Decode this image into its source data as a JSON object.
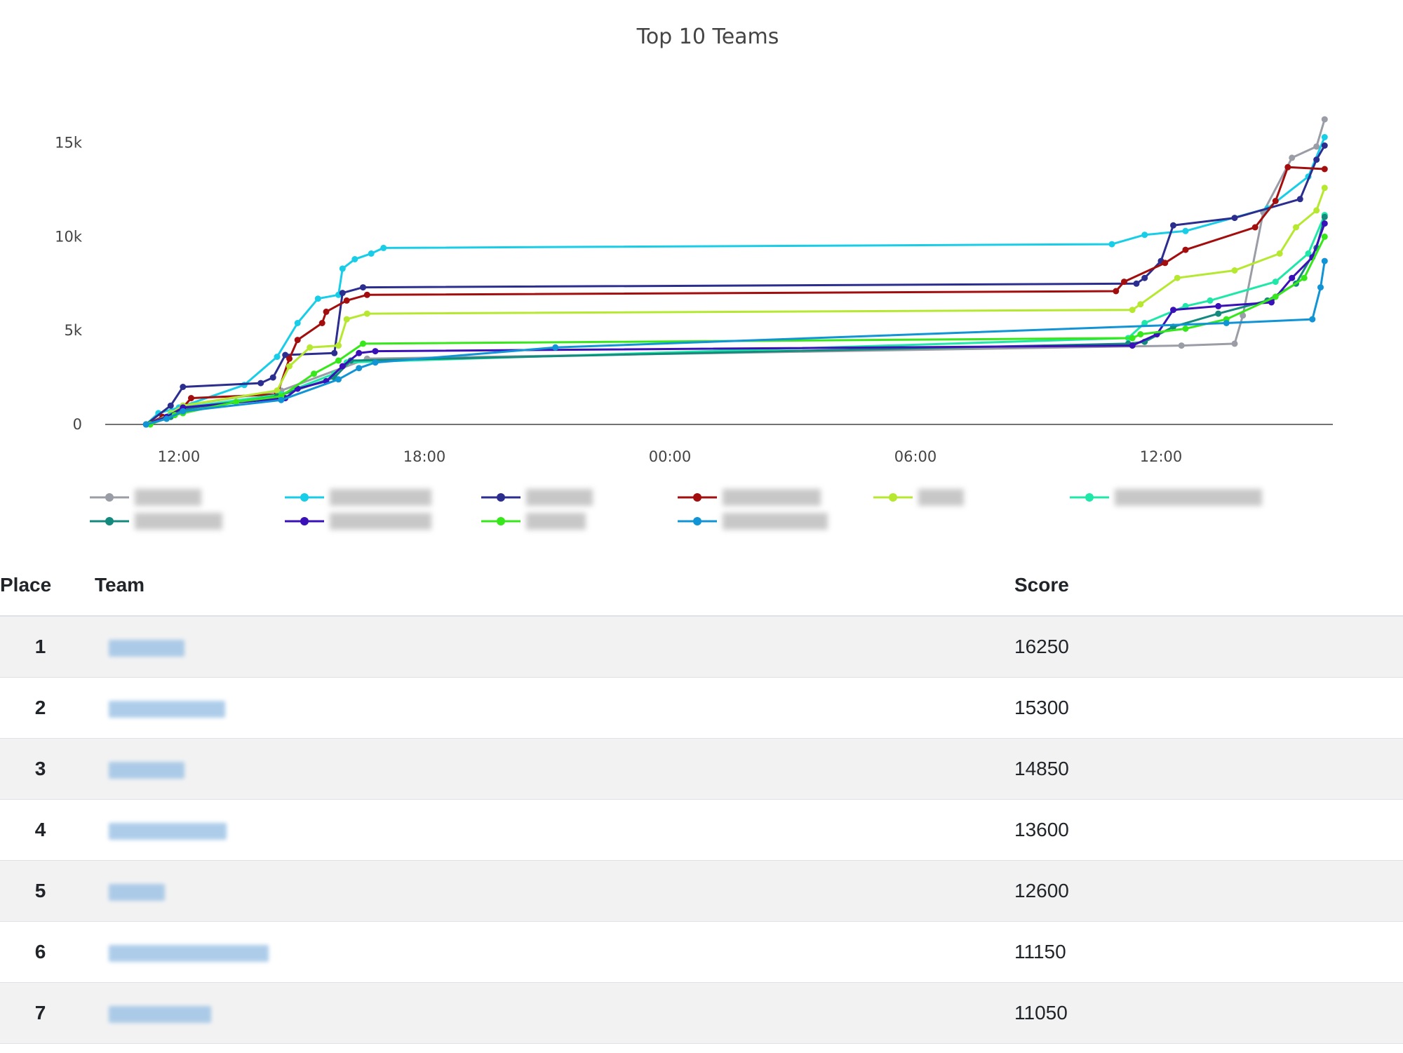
{
  "chart_data": {
    "type": "line",
    "title": "Top 10 Teams",
    "x_ticks": [
      "12:00",
      "18:00",
      "00:00",
      "06:00",
      "12:00"
    ],
    "x_tick_hours": [
      12,
      18,
      24,
      30,
      36
    ],
    "x_range_hours": [
      10.2,
      40.2
    ],
    "y_ticks": [
      "0",
      "5k",
      "10k",
      "15k"
    ],
    "y_tick_values": [
      0,
      5000,
      10000,
      15000
    ],
    "y_range": [
      0,
      17000
    ],
    "grid": false,
    "legend_position": "bottom",
    "series": [
      {
        "color": "#9a9ca6",
        "points": [
          [
            11.2,
            0
          ],
          [
            11.8,
            500
          ],
          [
            12.1,
            1000
          ],
          [
            14.5,
            1800
          ],
          [
            16.6,
            3500
          ],
          [
            36.5,
            4200
          ],
          [
            37.8,
            4300
          ],
          [
            38.0,
            5800
          ],
          [
            38.5,
            11300
          ],
          [
            39.2,
            14200
          ],
          [
            39.8,
            14800
          ],
          [
            40.0,
            16250
          ]
        ]
      },
      {
        "color": "#17cde8",
        "points": [
          [
            11.2,
            0
          ],
          [
            11.5,
            600
          ],
          [
            12.0,
            900
          ],
          [
            13.6,
            2100
          ],
          [
            14.4,
            3600
          ],
          [
            14.9,
            5400
          ],
          [
            15.4,
            6700
          ],
          [
            15.9,
            6900
          ],
          [
            16.0,
            8300
          ],
          [
            16.3,
            8800
          ],
          [
            16.7,
            9100
          ],
          [
            17.0,
            9400
          ],
          [
            34.8,
            9600
          ],
          [
            35.6,
            10100
          ],
          [
            36.6,
            10300
          ],
          [
            38.6,
            11500
          ],
          [
            39.6,
            13200
          ],
          [
            40.0,
            15300
          ]
        ]
      },
      {
        "color": "#2b2e8f",
        "points": [
          [
            11.2,
            0
          ],
          [
            11.8,
            1000
          ],
          [
            12.1,
            2000
          ],
          [
            14.0,
            2200
          ],
          [
            14.3,
            2500
          ],
          [
            14.6,
            3700
          ],
          [
            15.8,
            3800
          ],
          [
            16.0,
            7000
          ],
          [
            16.5,
            7300
          ],
          [
            35.4,
            7500
          ],
          [
            35.6,
            7800
          ],
          [
            36.0,
            8700
          ],
          [
            36.3,
            10600
          ],
          [
            37.8,
            11000
          ],
          [
            39.4,
            12000
          ],
          [
            39.8,
            14100
          ],
          [
            40.0,
            14850
          ]
        ]
      },
      {
        "color": "#a30d0d",
        "points": [
          [
            11.2,
            0
          ],
          [
            11.6,
            400
          ],
          [
            12.1,
            900
          ],
          [
            12.3,
            1400
          ],
          [
            14.4,
            1600
          ],
          [
            14.7,
            3500
          ],
          [
            14.9,
            4500
          ],
          [
            15.5,
            5400
          ],
          [
            15.6,
            6000
          ],
          [
            16.1,
            6600
          ],
          [
            16.6,
            6900
          ],
          [
            34.9,
            7100
          ],
          [
            35.1,
            7600
          ],
          [
            36.1,
            8600
          ],
          [
            36.6,
            9300
          ],
          [
            38.3,
            10500
          ],
          [
            38.8,
            11900
          ],
          [
            39.1,
            13700
          ],
          [
            40.0,
            13600
          ]
        ]
      },
      {
        "color": "#b5e82e",
        "points": [
          [
            11.3,
            0
          ],
          [
            11.8,
            600
          ],
          [
            12.1,
            1000
          ],
          [
            14.4,
            1800
          ],
          [
            14.7,
            3100
          ],
          [
            15.2,
            4100
          ],
          [
            15.9,
            4200
          ],
          [
            16.1,
            5600
          ],
          [
            16.6,
            5900
          ],
          [
            35.3,
            6100
          ],
          [
            35.5,
            6400
          ],
          [
            36.4,
            7800
          ],
          [
            37.8,
            8200
          ],
          [
            38.9,
            9100
          ],
          [
            39.3,
            10500
          ],
          [
            39.8,
            11400
          ],
          [
            40.0,
            12600
          ]
        ]
      },
      {
        "color": "#1de8a8",
        "points": [
          [
            11.2,
            0
          ],
          [
            11.8,
            500
          ],
          [
            12.1,
            900
          ],
          [
            14.5,
            1600
          ],
          [
            15.8,
            2700
          ],
          [
            16.1,
            3300
          ],
          [
            35.2,
            4600
          ],
          [
            35.6,
            5400
          ],
          [
            36.6,
            6300
          ],
          [
            37.2,
            6600
          ],
          [
            38.8,
            7600
          ],
          [
            39.6,
            9100
          ],
          [
            40.0,
            11150
          ]
        ]
      },
      {
        "color": "#138a7d",
        "points": [
          [
            11.2,
            0
          ],
          [
            11.8,
            400
          ],
          [
            12.1,
            800
          ],
          [
            14.4,
            1500
          ],
          [
            15.8,
            2500
          ],
          [
            16.2,
            3400
          ],
          [
            35.2,
            4300
          ],
          [
            35.6,
            4400
          ],
          [
            36.3,
            5200
          ],
          [
            37.4,
            5900
          ],
          [
            38.6,
            6600
          ],
          [
            39.3,
            7500
          ],
          [
            39.8,
            9400
          ],
          [
            40.0,
            11050
          ]
        ]
      },
      {
        "color": "#3a10b8",
        "points": [
          [
            11.2,
            0
          ],
          [
            11.7,
            400
          ],
          [
            12.1,
            900
          ],
          [
            14.6,
            1400
          ],
          [
            14.9,
            1900
          ],
          [
            15.6,
            2300
          ],
          [
            16.0,
            3100
          ],
          [
            16.4,
            3800
          ],
          [
            16.8,
            3900
          ],
          [
            35.3,
            4200
          ],
          [
            35.9,
            4800
          ],
          [
            36.3,
            6100
          ],
          [
            37.4,
            6300
          ],
          [
            38.7,
            6500
          ],
          [
            39.2,
            7800
          ],
          [
            39.7,
            8900
          ],
          [
            40.0,
            10700
          ]
        ]
      },
      {
        "color": "#36e81a",
        "points": [
          [
            11.3,
            0
          ],
          [
            11.9,
            500
          ],
          [
            12.1,
            600
          ],
          [
            13.4,
            1200
          ],
          [
            14.5,
            1500
          ],
          [
            15.3,
            2700
          ],
          [
            15.9,
            3400
          ],
          [
            16.5,
            4300
          ],
          [
            35.3,
            4600
          ],
          [
            35.5,
            4800
          ],
          [
            36.6,
            5100
          ],
          [
            37.6,
            5600
          ],
          [
            38.8,
            6800
          ],
          [
            39.5,
            7800
          ],
          [
            40.0,
            10000
          ]
        ]
      },
      {
        "color": "#1194d6",
        "points": [
          [
            11.2,
            0
          ],
          [
            11.7,
            300
          ],
          [
            12.1,
            700
          ],
          [
            14.5,
            1300
          ],
          [
            15.9,
            2400
          ],
          [
            16.4,
            3000
          ],
          [
            16.8,
            3300
          ],
          [
            21.2,
            4100
          ],
          [
            37.6,
            5400
          ],
          [
            39.7,
            5600
          ],
          [
            39.9,
            7300
          ],
          [
            40.0,
            8700
          ]
        ]
      }
    ]
  },
  "legend": {
    "items": [
      "",
      "",
      "",
      "",
      "",
      "",
      "",
      "",
      "",
      ""
    ]
  },
  "table": {
    "headers": {
      "place": "Place",
      "team": "Team",
      "score": "Score"
    },
    "rows": [
      {
        "place": "1",
        "team": "",
        "score": "16250"
      },
      {
        "place": "2",
        "team": "",
        "score": "15300"
      },
      {
        "place": "3",
        "team": "",
        "score": "14850"
      },
      {
        "place": "4",
        "team": "",
        "score": "13600"
      },
      {
        "place": "5",
        "team": "",
        "score": "12600"
      },
      {
        "place": "6",
        "team": "",
        "score": "11150"
      },
      {
        "place": "7",
        "team": "",
        "score": "11050"
      }
    ]
  }
}
